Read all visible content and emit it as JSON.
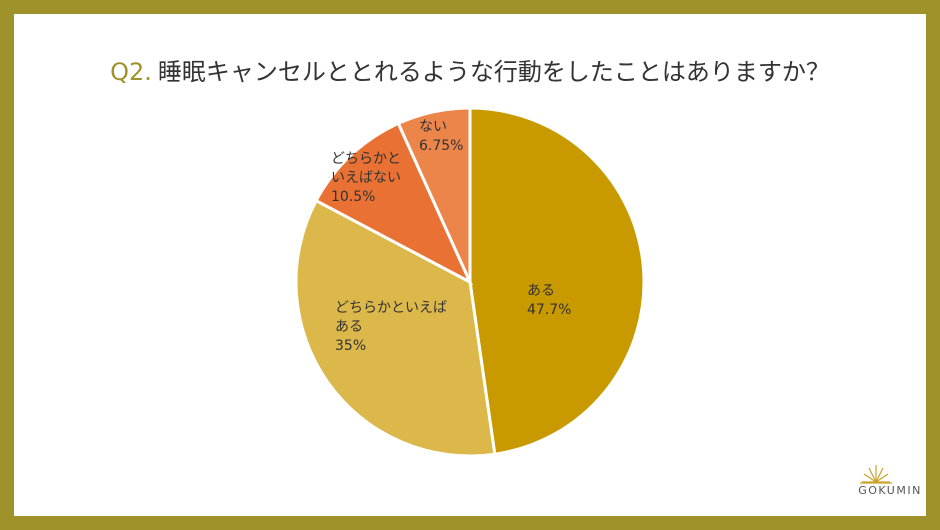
{
  "title_number": "Q2.",
  "chart_data": {
    "type": "pie",
    "title": "睡眠キャンセルととれるような行動をしたことはありますか？",
    "categories": [
      "ある",
      "どちらかといえばある",
      "どちらかといえばない",
      "ない"
    ],
    "values": [
      47.7,
      35,
      10.5,
      6.75
    ],
    "value_labels": [
      "47.7%",
      "35%",
      "10.5%",
      "6.75%"
    ],
    "colors": [
      "#c99a00",
      "#dcb84a",
      "#e87133",
      "#ec8549"
    ]
  },
  "logo": "GOKUMIN"
}
